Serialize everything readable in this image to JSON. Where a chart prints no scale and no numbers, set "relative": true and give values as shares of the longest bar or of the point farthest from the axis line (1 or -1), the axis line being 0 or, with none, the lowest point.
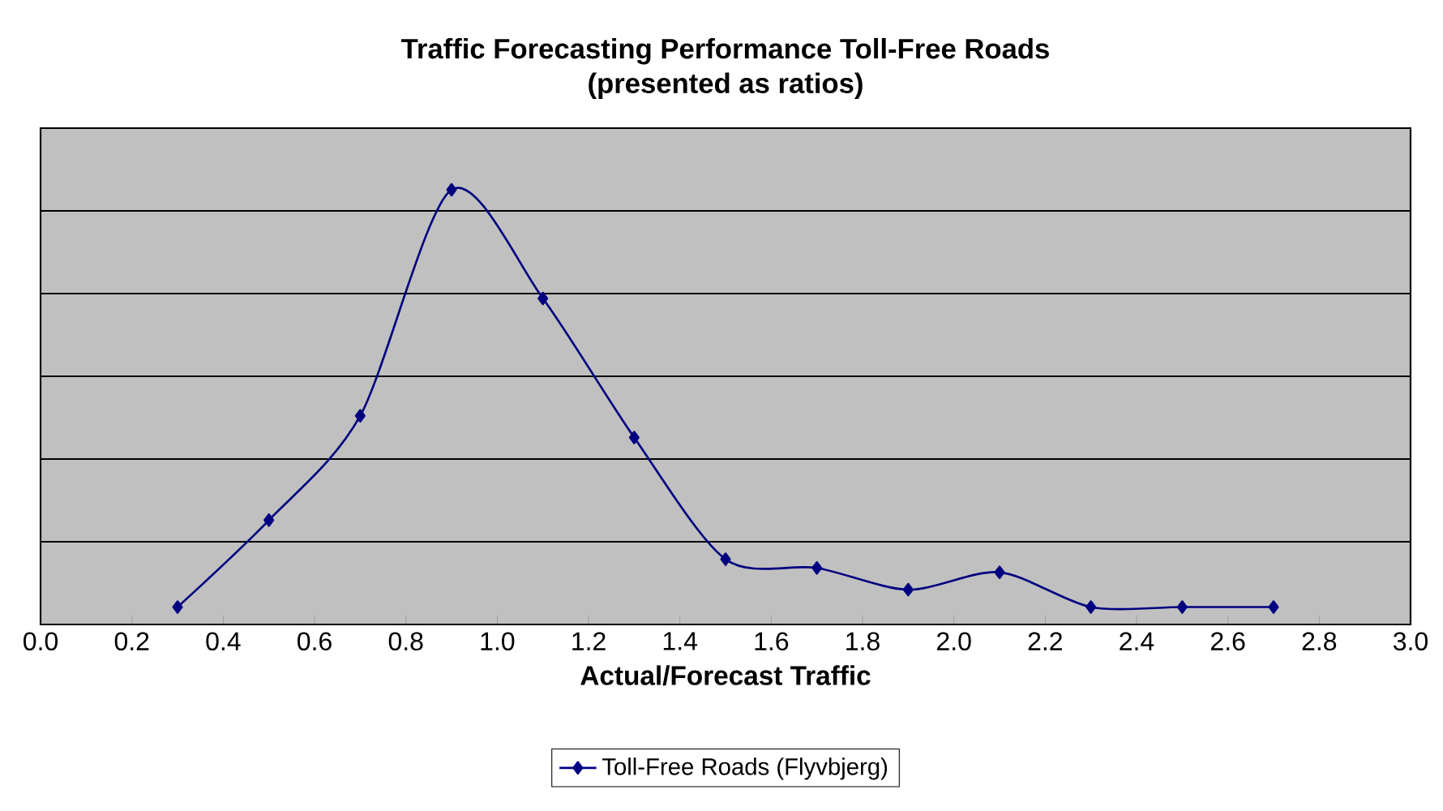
{
  "chart_data": {
    "type": "line",
    "title": "Traffic Forecasting Performance Toll-Free Roads",
    "subtitle": "(presented as ratios)",
    "xlabel": "Actual/Forecast Traffic",
    "relative": true,
    "x": [
      0.3,
      0.5,
      0.7,
      0.9,
      1.1,
      1.3,
      1.5,
      1.7,
      1.9,
      2.1,
      2.3,
      2.5,
      2.7
    ],
    "series": [
      {
        "name": "Toll-Free Roads (Flyvbjerg)",
        "color": "#000080",
        "values": [
          0.04,
          0.24,
          0.48,
          1,
          0.75,
          0.43,
          0.15,
          0.13,
          0.08,
          0.12,
          0.04,
          0.04,
          0.04
        ]
      }
    ],
    "xlim": [
      0,
      3
    ],
    "xticks": [
      {
        "value": 0,
        "label": "0.0"
      },
      {
        "value": 0.2,
        "label": "0.2"
      },
      {
        "value": 0.4,
        "label": "0.4"
      },
      {
        "value": 0.6,
        "label": "0.6"
      },
      {
        "value": 0.8,
        "label": "0.8"
      },
      {
        "value": 1,
        "label": "1.0"
      },
      {
        "value": 1.2,
        "label": "1.2"
      },
      {
        "value": 1.4,
        "label": "1.4"
      },
      {
        "value": 1.6,
        "label": "1.6"
      },
      {
        "value": 1.8,
        "label": "1.8"
      },
      {
        "value": 2,
        "label": "2.0"
      },
      {
        "value": 2.2,
        "label": "2.2"
      },
      {
        "value": 2.4,
        "label": "2.4"
      },
      {
        "value": 2.6,
        "label": "2.6"
      },
      {
        "value": 2.8,
        "label": "2.8"
      },
      {
        "value": 3,
        "label": "3.0"
      }
    ],
    "grid": "y",
    "legend": "bottom",
    "marker": "diamond",
    "line_style": "solid"
  }
}
